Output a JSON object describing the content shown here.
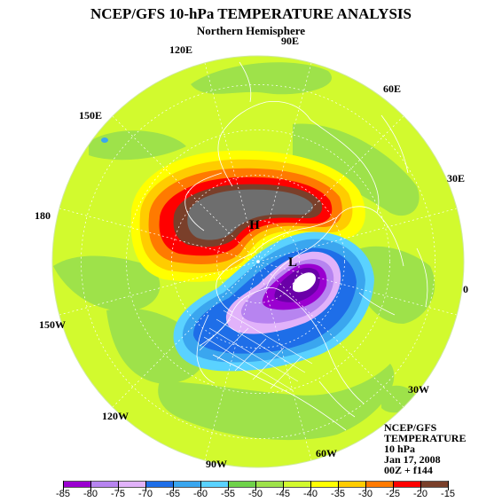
{
  "title": "NCEP/GFS 10-hPa TEMPERATURE ANALYSIS",
  "subtitle": "Northern Hemisphere",
  "longitude_labels": [
    "90E",
    "60E",
    "30E",
    "0",
    "30W",
    "60W",
    "90W",
    "120W",
    "150W",
    "180",
    "150E",
    "120E"
  ],
  "extrema": {
    "high": "H",
    "low": "L"
  },
  "info_block": [
    "NCEP/GFS",
    "TEMPERATURE",
    "10 hPa",
    "Jan 17, 2008",
    "00Z + f144"
  ],
  "legend": {
    "values": [
      "-85",
      "-80",
      "-75",
      "-70",
      "-65",
      "-60",
      "-55",
      "-50",
      "-45",
      "-40",
      "-35",
      "-30",
      "-25",
      "-20",
      "-15"
    ],
    "colors": [
      "#9a00d0",
      "#b784f0",
      "#e1b2fa",
      "#1e6ee8",
      "#3aa6ef",
      "#5ad2ff",
      "#6fd24a",
      "#9ee24a",
      "#d2fa2e",
      "#ffff00",
      "#ffcc00",
      "#ff7a00",
      "#ff0000",
      "#7a3f2a"
    ],
    "extra_low_color": "#6a00a8",
    "extra_high_color": "#6e6e6e"
  },
  "map_colors": {
    "background_field": "#d2fa2e",
    "green_band": "#9ee24a",
    "coast": "#ffffff",
    "gridline": "#ffffff"
  }
}
